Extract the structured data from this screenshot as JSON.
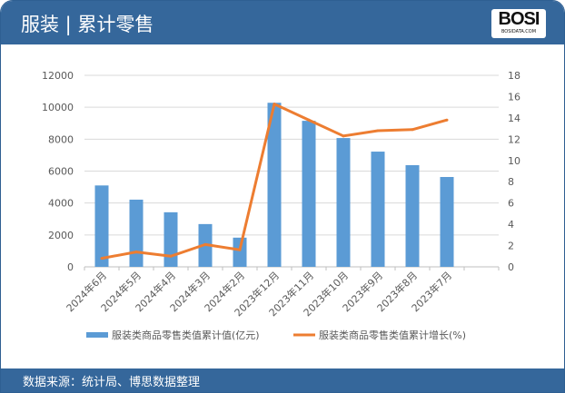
{
  "header": {
    "title": "服装 | 累计零售",
    "logo_text": "BOSI",
    "logo_sub": "BOSIDATA.COM"
  },
  "footer": {
    "source": "数据来源：统计局、博思数据整理"
  },
  "colors": {
    "header": "#35679b",
    "bar": "#5b9bd5",
    "line": "#ed7d31"
  },
  "chart_data": {
    "type": "bar+line",
    "categories": [
      "2024年6月",
      "2024年5月",
      "2024年4月",
      "2024年3月",
      "2024年2月",
      "2023年12月",
      "2023年11月",
      "2023年10月",
      "2023年9月",
      "2023年8月",
      "2023年7月"
    ],
    "series": [
      {
        "name": "服装类商品零售类值累计值(亿元)",
        "type": "bar",
        "axis": "left",
        "values": [
          5100,
          4210,
          3420,
          2680,
          1830,
          10280,
          9150,
          8070,
          7220,
          6370,
          5630
        ]
      },
      {
        "name": "服装类商品零售类值累计增长(%)",
        "type": "line",
        "axis": "right",
        "values": [
          0.8,
          1.4,
          1.0,
          2.1,
          1.6,
          15.3,
          13.8,
          12.3,
          12.8,
          12.9,
          13.8
        ]
      }
    ],
    "ylim_left": [
      0,
      12000
    ],
    "yticks_left": [
      "0",
      "2000",
      "4000",
      "6000",
      "8000",
      "10000",
      "12000"
    ],
    "ylim_right": [
      0,
      18
    ],
    "yticks_right": [
      "0",
      "2",
      "4",
      "6",
      "8",
      "10",
      "12",
      "14",
      "16",
      "18"
    ],
    "grid": true,
    "legend": "bottom"
  }
}
